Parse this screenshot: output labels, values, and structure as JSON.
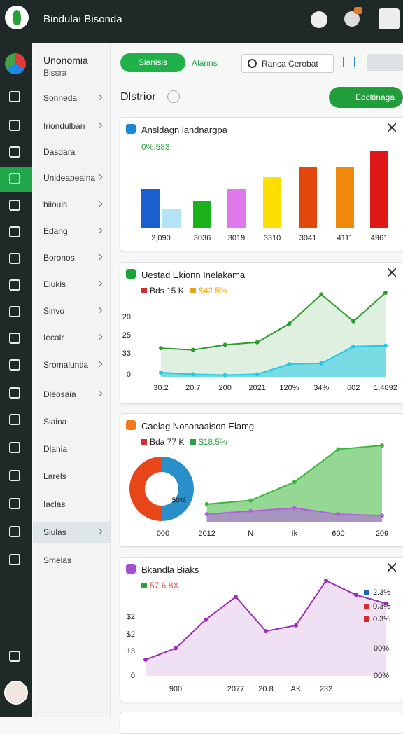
{
  "app": {
    "title": "Bindulaı Bisonda"
  },
  "sidebar": {
    "title": "Unonomia",
    "subtitle": "Bissra",
    "items": [
      "Sonneda",
      "Iriondulban",
      "Dasdara",
      "Unideapeaina",
      "biiouls",
      "Edang",
      "Boronos",
      "Eiukls",
      "Sinvo",
      "Iecalr",
      "Sromaluntia",
      "Dleosaia",
      "Siaina",
      "Dlania",
      "Larels",
      "Iaclas",
      "Siulas",
      "Smelas"
    ]
  },
  "toolbar": {
    "tabs": [
      "Sianisis",
      "Alanns"
    ],
    "search": "Ranca Cerobat"
  },
  "page": {
    "heading": "Dlstrior",
    "action": "Edcltinaga"
  },
  "panels": [
    {
      "title": "Ansldagn landnargpa",
      "subtitle": "0%.583",
      "chart": {
        "type": "bar",
        "categories": [
          "2,090",
          null,
          "3036",
          "3019",
          "3310",
          "3041",
          "4111",
          "4961"
        ],
        "values": [
          55,
          26,
          38,
          55,
          72,
          87,
          87,
          109
        ],
        "colors": [
          "#1a5fd0",
          "#b3e3f5",
          "#19b21b",
          "#dd79ea",
          "#ffdf00",
          "#e2480c",
          "#f08a0c",
          "#e01717"
        ]
      }
    },
    {
      "title": "Uestad Ekionn Inelakama",
      "chart": {
        "type": "line",
        "categories": [
          "30.2",
          "20.7",
          "200",
          "2021",
          "120%",
          "34%",
          "602",
          "1,4892"
        ],
        "y_labels": [
          20,
          25,
          33,
          0
        ],
        "series": [
          {
            "name": "Bds 15 K",
            "color": "#2e9b2e",
            "kind": "line",
            "values": [
              34,
              32,
              38,
              41,
              63,
              98,
              66,
              100
            ]
          },
          {
            "name": "$42.5%",
            "color": "#22c8e6",
            "kind": "area",
            "values": [
              5,
              3,
              2,
              3,
              15,
              16,
              36,
              37
            ]
          }
        ]
      }
    },
    {
      "title": "Caolag Nosonaaison Elamg",
      "chart": {
        "type": "area",
        "categories": [
          "000",
          "2012",
          "N",
          "Ik",
          "600",
          "209"
        ],
        "donut": {
          "values": [
            50,
            50
          ],
          "colors": [
            "#e8461a",
            "#2a8fc9"
          ],
          "value_labels": [
            null,
            "50%"
          ]
        },
        "series": [
          {
            "name": "Bda 77 K",
            "color": "#3cb83c",
            "kind": "area",
            "values": [
              null,
              23,
              28,
              52,
              95,
              100
            ]
          },
          {
            "name": "$18.5%",
            "color": "#b45ee0",
            "kind": "area",
            "values": [
              null,
              10,
              14,
              18,
              10,
              8
            ]
          }
        ]
      }
    },
    {
      "title": "Bkandla Biaks",
      "chart": {
        "type": "line",
        "categories": [
          null,
          "900",
          null,
          "2077",
          "20.8",
          "AK",
          "232",
          null,
          null
        ],
        "y_labels": [
          {
            "value": 2,
            "label": "$2"
          },
          {
            "value": 2,
            "label": "$2"
          },
          13,
          0
        ],
        "y2_labels": [
          {
            "value": 0,
            "label": "00%"
          },
          {
            "value": 0,
            "label": "00%"
          }
        ],
        "legend": [
          {
            "name": "2.3%",
            "color": "#1f5fbf"
          },
          {
            "name": "0.3%",
            "color": "#d62b2b"
          },
          {
            "name": "0.3%",
            "color": "#d62b2b"
          }
        ],
        "series": [
          {
            "name": "57.6.8X",
            "color": "#9b2fb8",
            "kind": "line",
            "values": [
              17,
              29,
              59,
              83,
              47,
              53,
              100,
              85,
              76
            ]
          }
        ]
      }
    }
  ]
}
